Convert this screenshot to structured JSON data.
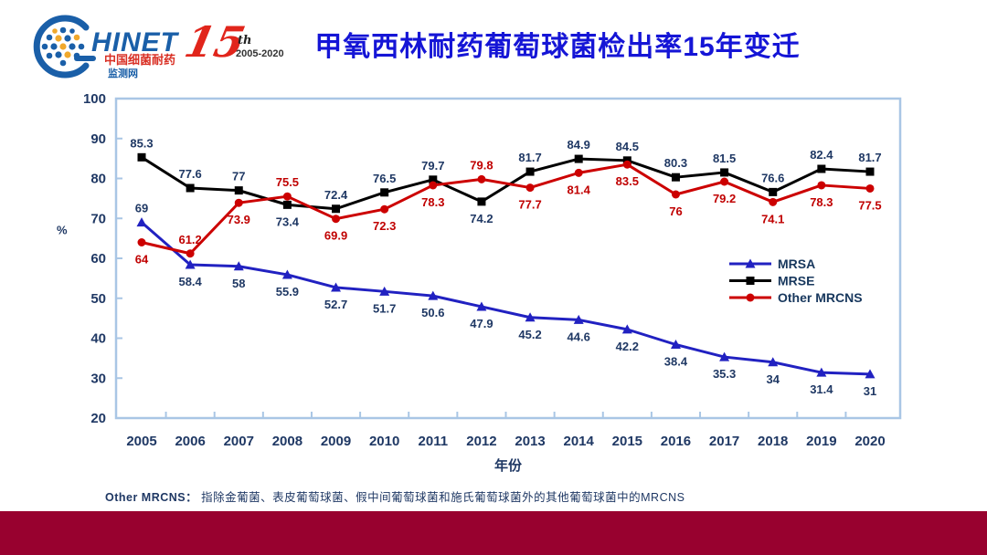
{
  "header": {
    "logo": {
      "brand": "HINET",
      "line1": "中国细菌耐药",
      "line2": "监测网",
      "brand_color": "#1a5fa8",
      "line1_color": "#d93025"
    },
    "anniversary": {
      "number": "15",
      "suffix": "th",
      "years": "2005-2020",
      "color": "#e1251b"
    },
    "title": "甲氧西林耐药葡萄球菌检出率15年变迁",
    "title_color": "#1515d6"
  },
  "chart_data": {
    "type": "line",
    "title": "甲氧西林耐药葡萄球菌检出率15年变迁",
    "categories": [
      2005,
      2006,
      2007,
      2008,
      2009,
      2010,
      2011,
      2012,
      2013,
      2014,
      2015,
      2016,
      2017,
      2018,
      2019,
      2020
    ],
    "series": [
      {
        "name": "MRSA",
        "color": "#2121c1",
        "marker": "triangle",
        "label_color": "#1f3864",
        "values": [
          69,
          58.4,
          58,
          55.9,
          52.7,
          51.7,
          50.6,
          47.9,
          45.2,
          44.6,
          42.2,
          38.4,
          35.3,
          34,
          31.4,
          31
        ],
        "label_side": [
          "above",
          "below",
          "below",
          "below",
          "below",
          "below",
          "below",
          "below",
          "below",
          "below",
          "below",
          "below",
          "below",
          "below",
          "below",
          "below"
        ]
      },
      {
        "name": "MRSE",
        "color": "#000000",
        "marker": "square",
        "label_color": "#1f3864",
        "values": [
          85.3,
          77.6,
          77,
          73.4,
          72.4,
          76.5,
          79.7,
          74.2,
          81.7,
          84.9,
          84.5,
          80.3,
          81.5,
          76.6,
          82.4,
          81.7
        ],
        "label_side": [
          "above",
          "above",
          "above",
          "below",
          "above",
          "above",
          "above",
          "below",
          "above",
          "above",
          "above",
          "above",
          "above",
          "above",
          "above",
          "above"
        ]
      },
      {
        "name": "Other MRCNS",
        "color": "#cc0000",
        "marker": "circle",
        "label_color": "#c00000",
        "values": [
          64,
          61.2,
          73.9,
          75.5,
          69.9,
          72.3,
          78.3,
          79.8,
          77.7,
          81.4,
          83.5,
          76,
          79.2,
          74.1,
          78.3,
          77.5
        ],
        "label_side": [
          "below",
          "above",
          "below",
          "above",
          "below",
          "below",
          "below",
          "above",
          "below",
          "below",
          "below",
          "below",
          "below",
          "below",
          "below",
          "below"
        ]
      }
    ],
    "xlabel": "年份",
    "ylabel": "%",
    "ylim": [
      20,
      100
    ],
    "ytick_step": 10,
    "grid": false,
    "legend_position": "right-middle",
    "frame_color": "#a9c6e5",
    "axis_label_color": "#1f3864"
  },
  "footer": {
    "prefix": "Other MRCNS：",
    "text": "指除金葡菌、表皮葡萄球菌、假中间葡萄球菌和施氏葡萄球菌外的其他葡萄球菌中的MRCNS",
    "bar_color": "#98012f"
  }
}
